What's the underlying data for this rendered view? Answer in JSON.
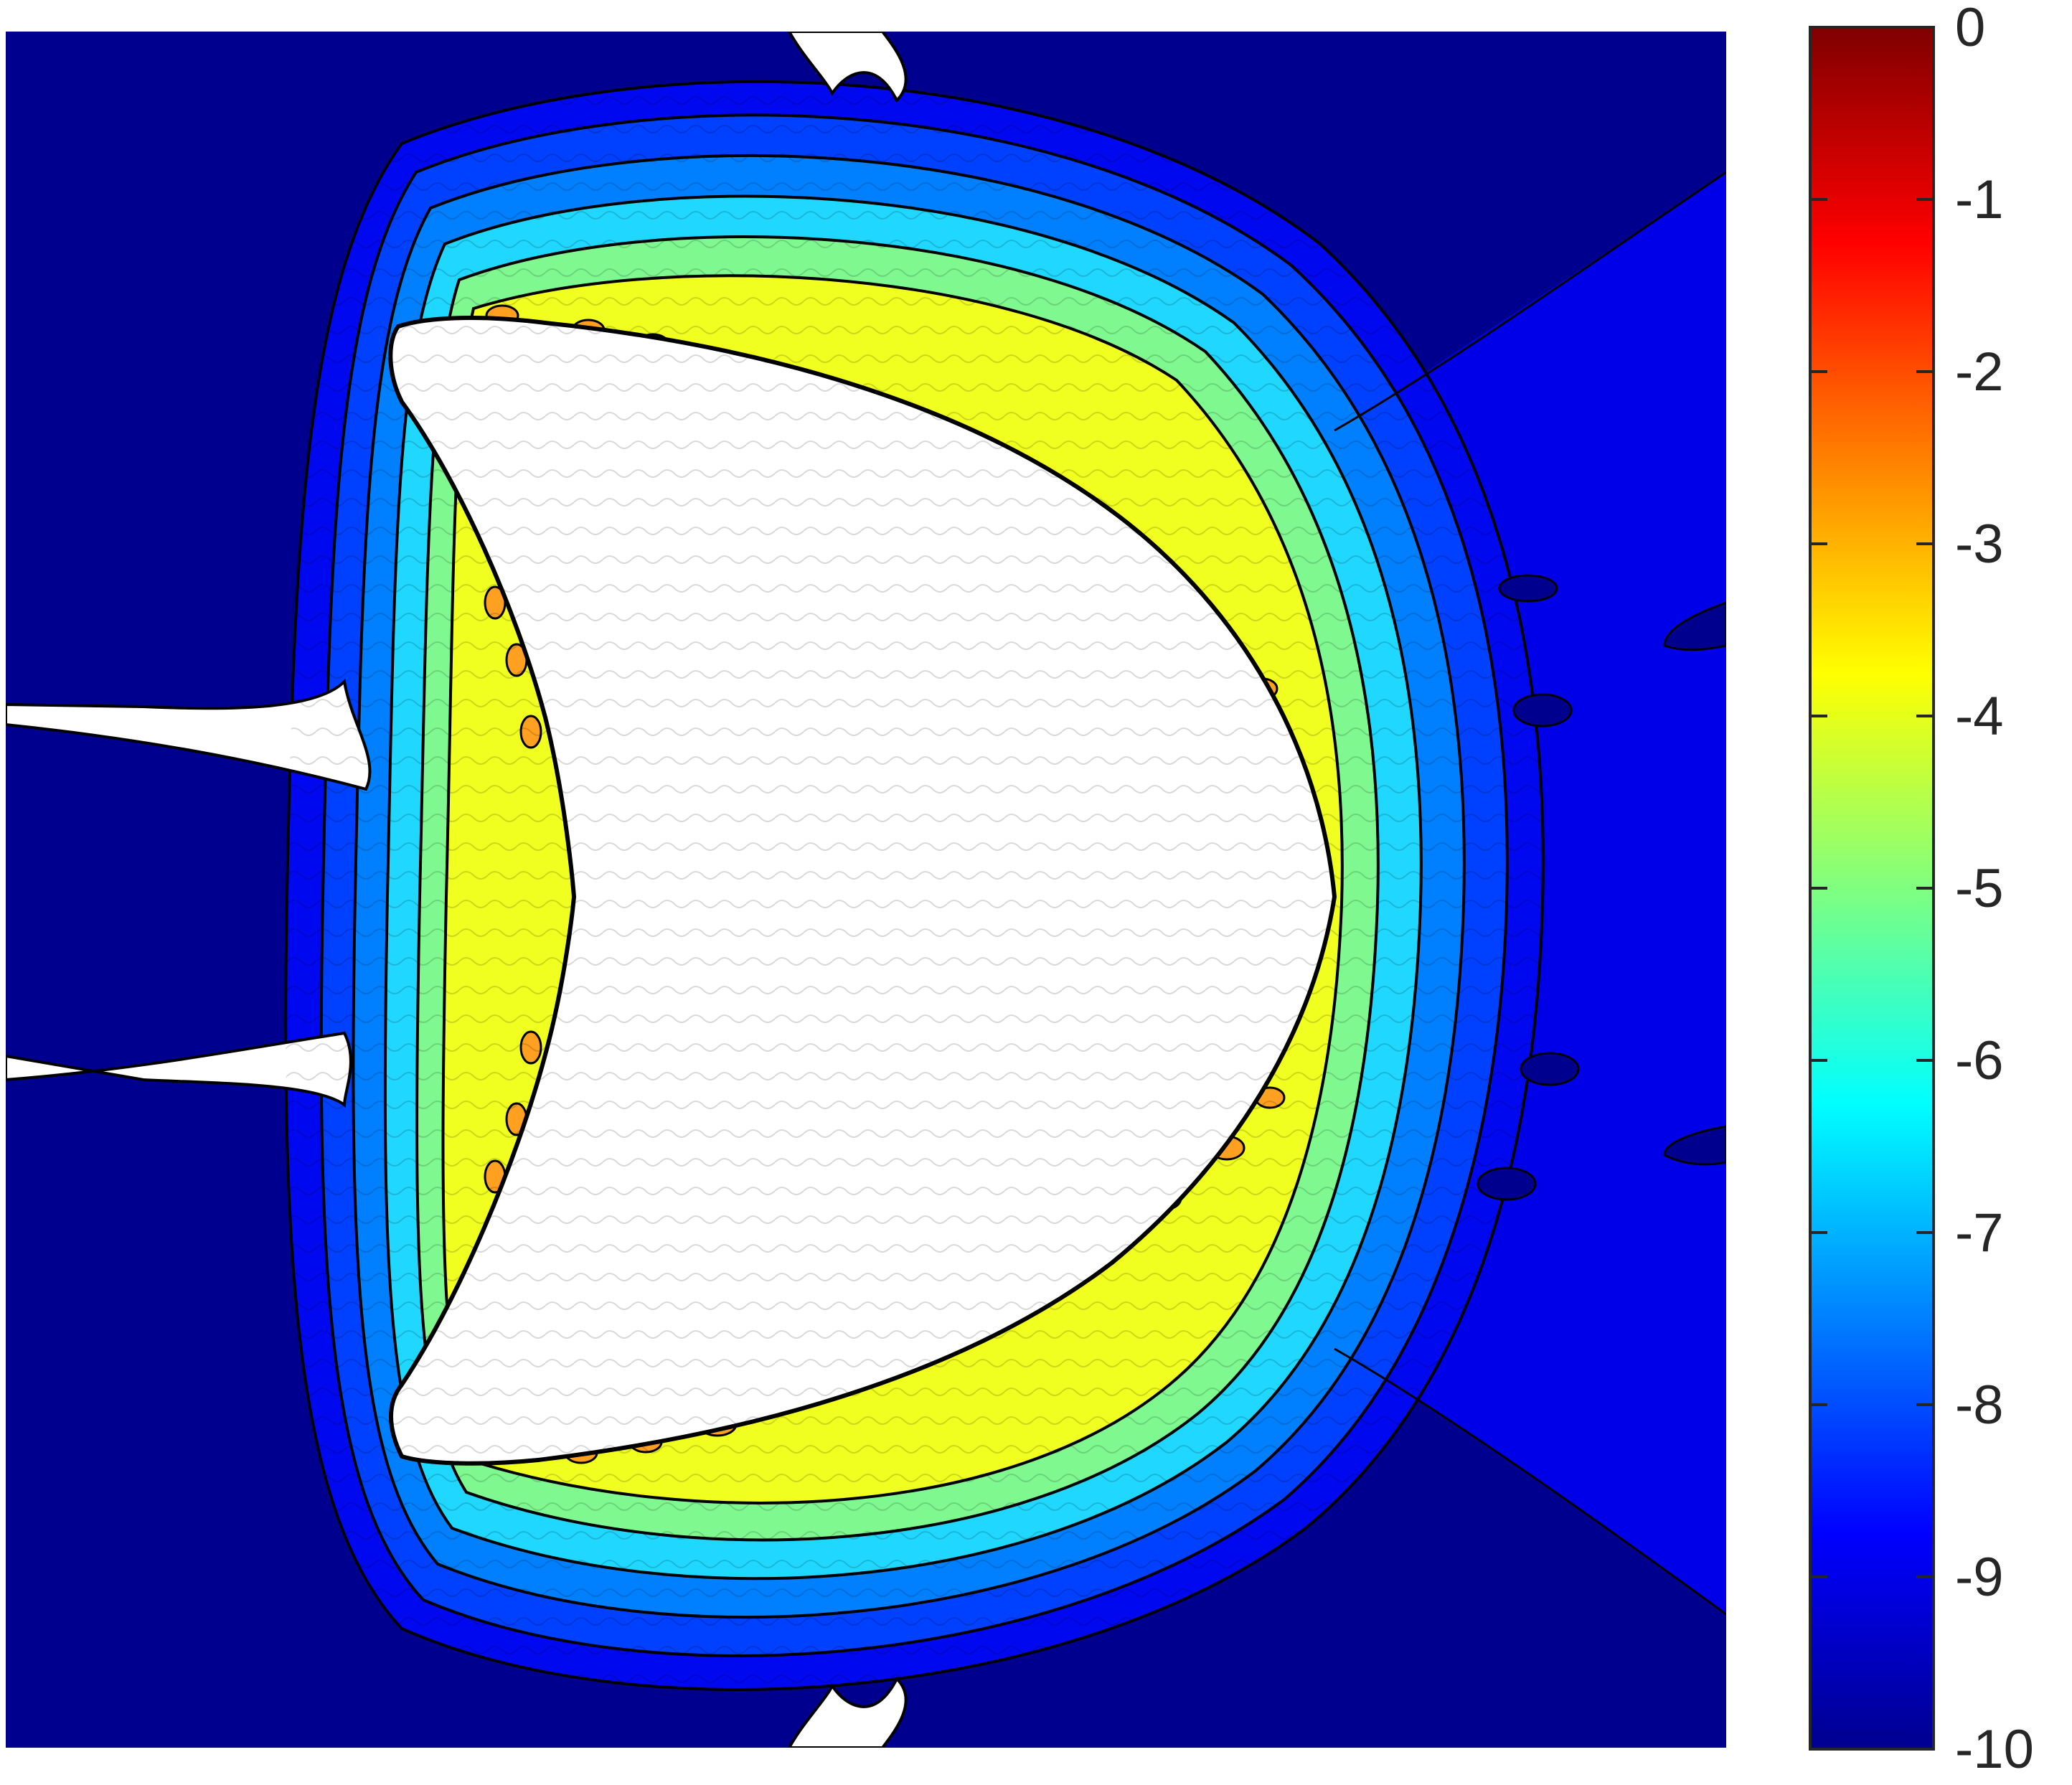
{
  "chart_data": {
    "type": "heatmap",
    "title": "",
    "xlabel": "",
    "ylabel": "",
    "colormap": "jet",
    "contour_lines": true,
    "grid": false,
    "colorbar": {
      "position": "right",
      "range": [
        -10,
        0
      ],
      "ticks": [
        0,
        -1,
        -2,
        -3,
        -4,
        -5,
        -6,
        -7,
        -8,
        -9,
        -10
      ],
      "tick_labels": [
        "0",
        "-1",
        "-2",
        "-3",
        "-4",
        "-5",
        "-6",
        "-7",
        "-8",
        "-9",
        "-10"
      ]
    },
    "field": {
      "description_of_levels": "log10 magnitude, approx. -3 near the boundary of the central crescent-shaped region, decreasing outward to -10 in the far field",
      "levels": [
        -3,
        -4,
        -4.5,
        -5,
        -5.5,
        -6,
        -6.5,
        -7,
        -7.5,
        -8,
        -8.5,
        -9,
        -9.5,
        -10
      ]
    },
    "colors": {
      "background_field": "#00008f",
      "outer_halo": "#0000ff",
      "level_minus_3": "#ffa020",
      "level_minus_4": "#eeff20",
      "level_minus_5": "#90f070",
      "level_minus_6": "#30f0d0",
      "level_minus_7": "#00b0ff",
      "level_minus_8": "#0060ff",
      "masked_region": "#ffffff",
      "contour_line": "#000000"
    }
  }
}
